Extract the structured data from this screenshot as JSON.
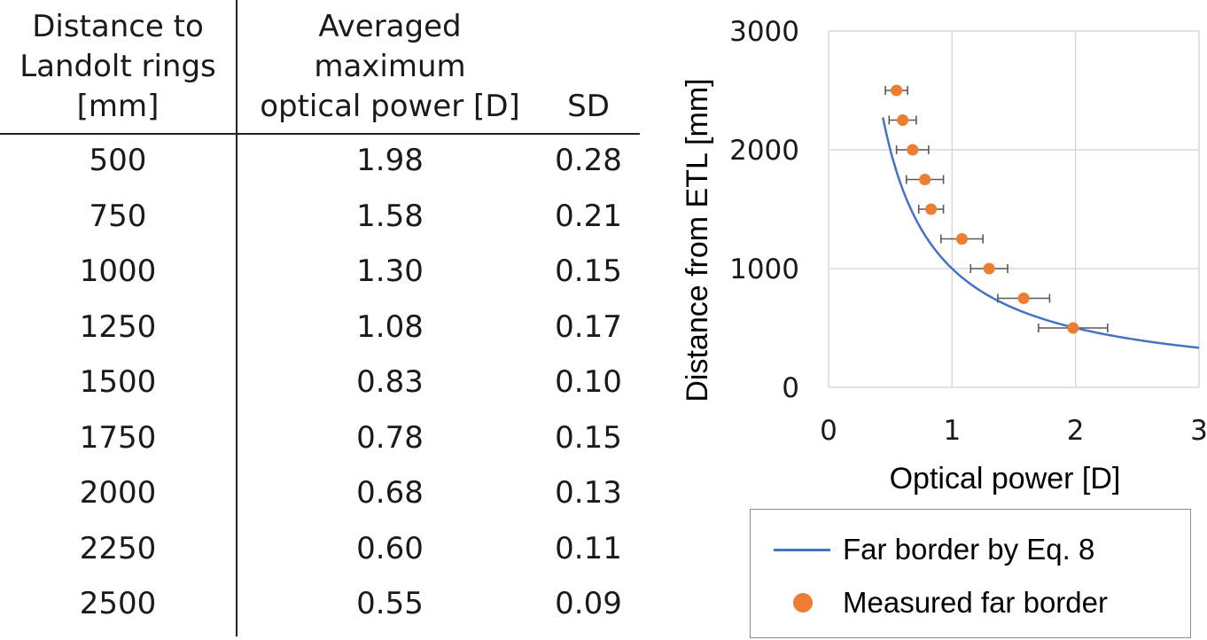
{
  "table": {
    "headers": {
      "distance": "Distance to\nLandolt rings\n[mm]",
      "power": "Averaged\nmaximum\noptical power [D]",
      "sd": "SD"
    },
    "rows": [
      {
        "distance": "500",
        "power": "1.98",
        "sd": "0.28"
      },
      {
        "distance": "750",
        "power": "1.58",
        "sd": "0.21"
      },
      {
        "distance": "1000",
        "power": "1.30",
        "sd": "0.15"
      },
      {
        "distance": "1250",
        "power": "1.08",
        "sd": "0.17"
      },
      {
        "distance": "1500",
        "power": "0.83",
        "sd": "0.10"
      },
      {
        "distance": "1750",
        "power": "0.78",
        "sd": "0.15"
      },
      {
        "distance": "2000",
        "power": "0.68",
        "sd": "0.13"
      },
      {
        "distance": "2250",
        "power": "0.60",
        "sd": "0.11"
      },
      {
        "distance": "2500",
        "power": "0.55",
        "sd": "0.09"
      }
    ]
  },
  "chart_data": {
    "type": "scatter",
    "xlabel": "Optical power [D]",
    "ylabel": "Distance from ETL [mm]",
    "xlim": [
      0,
      3
    ],
    "ylim": [
      0,
      3000
    ],
    "xticks": [
      0,
      1,
      2,
      3
    ],
    "yticks": [
      0,
      1000,
      2000,
      3000
    ],
    "grid": true,
    "legend_position": "bottom",
    "series": [
      {
        "name": "Far border by Eq. 8",
        "type": "line",
        "color": "#4472c4",
        "x_range": [
          0.44,
          3
        ],
        "curve_equation": "y = 1000 / x"
      },
      {
        "name": "Measured far border",
        "type": "scatter",
        "color": "#ed7d31",
        "x": [
          1.98,
          1.58,
          1.3,
          1.08,
          0.83,
          0.78,
          0.68,
          0.6,
          0.55
        ],
        "y": [
          500,
          750,
          1000,
          1250,
          1500,
          1750,
          2000,
          2250,
          2500
        ],
        "x_error": [
          0.28,
          0.21,
          0.15,
          0.17,
          0.1,
          0.15,
          0.13,
          0.11,
          0.09
        ]
      }
    ]
  }
}
